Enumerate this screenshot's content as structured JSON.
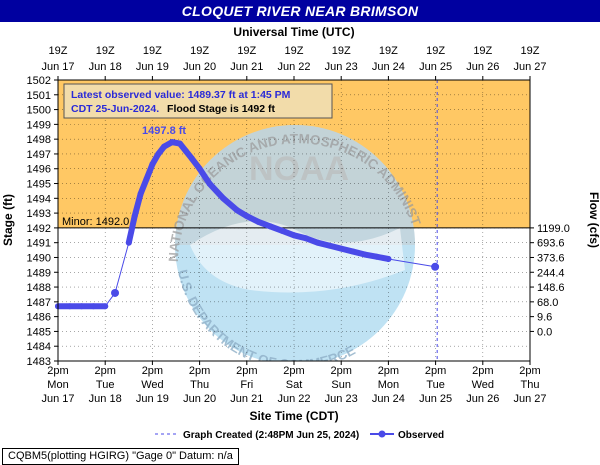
{
  "header": {
    "title": "CLOQUET RIVER NEAR BRIMSON"
  },
  "chart_data": {
    "type": "line",
    "title": "CLOQUET RIVER NEAR BRIMSON",
    "top_axis_title": "Universal Time (UTC)",
    "top_tick_labels": [
      {
        "hour": "19Z",
        "day": "Jun 17"
      },
      {
        "hour": "19Z",
        "day": "Jun 18"
      },
      {
        "hour": "19Z",
        "day": "Jun 19"
      },
      {
        "hour": "19Z",
        "day": "Jun 20"
      },
      {
        "hour": "19Z",
        "day": "Jun 21"
      },
      {
        "hour": "19Z",
        "day": "Jun 22"
      },
      {
        "hour": "19Z",
        "day": "Jun 23"
      },
      {
        "hour": "19Z",
        "day": "Jun 24"
      },
      {
        "hour": "19Z",
        "day": "Jun 25"
      },
      {
        "hour": "19Z",
        "day": "Jun 26"
      },
      {
        "hour": "19Z",
        "day": "Jun 27"
      }
    ],
    "xlabel": "Site Time (CDT)",
    "bottom_tick_labels": [
      {
        "time": "2pm",
        "dow": "Mon",
        "day": "Jun 17"
      },
      {
        "time": "2pm",
        "dow": "Tue",
        "day": "Jun 18"
      },
      {
        "time": "2pm",
        "dow": "Wed",
        "day": "Jun 19"
      },
      {
        "time": "2pm",
        "dow": "Thu",
        "day": "Jun 20"
      },
      {
        "time": "2pm",
        "dow": "Fri",
        "day": "Jun 21"
      },
      {
        "time": "2pm",
        "dow": "Sat",
        "day": "Jun 22"
      },
      {
        "time": "2pm",
        "dow": "Sun",
        "day": "Jun 23"
      },
      {
        "time": "2pm",
        "dow": "Mon",
        "day": "Jun 24"
      },
      {
        "time": "2pm",
        "dow": "Tue",
        "day": "Jun 25"
      },
      {
        "time": "2pm",
        "dow": "Wed",
        "day": "Jun 26"
      },
      {
        "time": "2pm",
        "dow": "Thu",
        "day": "Jun 27"
      }
    ],
    "xlim": [
      "2024-06-17 14:00",
      "2024-06-27 14:00"
    ],
    "ylabel": "Stage (ft)",
    "ylim": [
      1483,
      1502
    ],
    "yticks": [
      1483,
      1484,
      1485,
      1486,
      1487,
      1488,
      1489,
      1490,
      1491,
      1492,
      1493,
      1494,
      1495,
      1496,
      1497,
      1498,
      1499,
      1500,
      1501,
      1502
    ],
    "y2label": "Flow (cfs)",
    "y2ticks": [
      {
        "stage": 1492.0,
        "label": "1199.0"
      },
      {
        "stage": 1491.0,
        "label": "693.6"
      },
      {
        "stage": 1490.0,
        "label": "373.6"
      },
      {
        "stage": 1489.0,
        "label": "244.4"
      },
      {
        "stage": 1488.0,
        "label": "148.6"
      },
      {
        "stage": 1487.0,
        "label": "68.0"
      },
      {
        "stage": 1486.0,
        "label": "9.6"
      },
      {
        "stage": 1485.0,
        "label": "0.0"
      }
    ],
    "flood_category": {
      "label": "Minor: 1492.0",
      "stage": 1492.0,
      "color": "#ffc864"
    },
    "grid": true,
    "observed_color": "#4a4ae8",
    "series": [
      {
        "name": "Observed",
        "x": [
          "2024-06-17 14:00",
          "2024-06-17 20:00",
          "2024-06-18 02:00",
          "2024-06-18 08:00",
          "2024-06-18 14:00",
          "2024-06-18 19:00",
          "2024-06-19 02:00",
          "2024-06-19 05:00",
          "2024-06-19 08:00",
          "2024-06-19 11:00",
          "2024-06-19 14:00",
          "2024-06-19 17:00",
          "2024-06-19 20:00",
          "2024-06-20 00:00",
          "2024-06-20 04:00",
          "2024-06-20 07:00",
          "2024-06-20 10:00",
          "2024-06-20 14:00",
          "2024-06-20 19:00",
          "2024-06-21 02:00",
          "2024-06-21 09:00",
          "2024-06-21 14:00",
          "2024-06-21 20:00",
          "2024-06-22 02:00",
          "2024-06-22 08:00",
          "2024-06-22 14:00",
          "2024-06-22 20:00",
          "2024-06-23 02:00",
          "2024-06-23 08:00",
          "2024-06-23 14:00",
          "2024-06-23 20:00",
          "2024-06-24 02:00",
          "2024-06-24 08:00",
          "2024-06-24 14:00",
          "2024-06-25 13:45"
        ],
        "values": [
          1486.7,
          1486.7,
          1486.7,
          1486.7,
          1486.7,
          1487.6,
          1491.0,
          1492.8,
          1494.3,
          1495.3,
          1496.3,
          1497.0,
          1497.5,
          1497.8,
          1497.7,
          1497.2,
          1496.7,
          1496.0,
          1495.0,
          1494.0,
          1493.2,
          1492.8,
          1492.4,
          1492.1,
          1491.8,
          1491.5,
          1491.3,
          1491.0,
          1490.8,
          1490.6,
          1490.4,
          1490.2,
          1490.05,
          1489.9,
          1489.37
        ]
      }
    ],
    "peak_label": "1497.8 ft",
    "graph_created_time": "2024-06-25 14:48",
    "annotation": {
      "line1": "Latest observed value: 1489.37 ft at 1:45 PM",
      "line2": "CDT 25-Jun-2024.",
      "line2_bold": "Flood Stage is 1492 ft"
    },
    "legend": {
      "graph_created": "Graph Created (2:48PM Jun 25, 2024)",
      "observed": "Observed",
      "placement": "bottom-center"
    },
    "watermark_text": [
      "NATIONAL OCEANIC AND ATMOSPHERIC ADMINISTRATION",
      "NOAA",
      "U.S. DEPARTMENT OF COMMERCE"
    ]
  },
  "footer": {
    "text": "CQBM5(plotting HGIRG) \"Gage 0\" Datum: n/a"
  }
}
